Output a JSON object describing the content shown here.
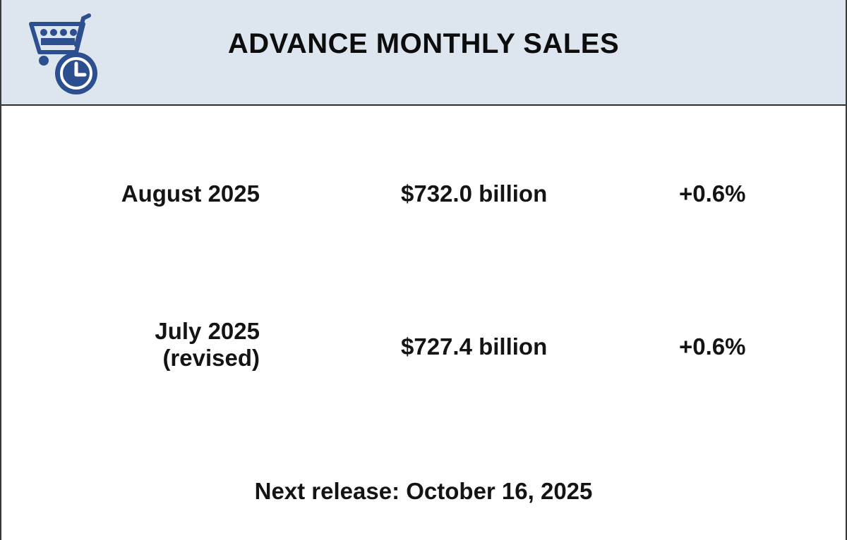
{
  "header": {
    "title": "ADVANCE MONTHLY SALES",
    "logo_icon": "shopping-cart-clock-icon",
    "background_color": "#dde5ef",
    "logo_color": "#2c4f8f"
  },
  "rows": [
    {
      "period_line1": "August 2025",
      "period_line2": "",
      "amount": "$732.0 billion",
      "change": "+0.6%"
    },
    {
      "period_line1": "July 2025",
      "period_line2": "(revised)",
      "amount": "$727.4 billion",
      "change": "+0.6%"
    }
  ],
  "footer": {
    "next_release": "Next release: October 16, 2025"
  }
}
